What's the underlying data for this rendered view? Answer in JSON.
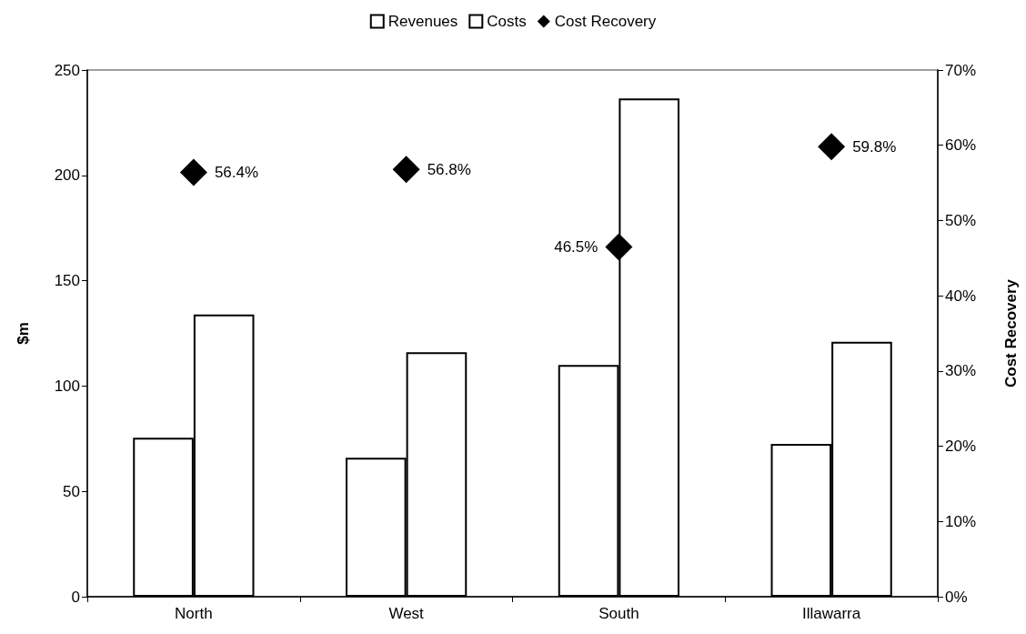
{
  "chart_data": {
    "type": "bar",
    "categories": [
      "North",
      "West",
      "South",
      "Illawarra"
    ],
    "series": [
      {
        "name": "Revenues",
        "color": "#ffffff",
        "values": [
          75.5,
          66,
          110,
          72.5
        ]
      },
      {
        "name": "Costs",
        "color": "#ffffff",
        "values": [
          134,
          116,
          236.5,
          121
        ]
      },
      {
        "name": "Cost Recovery",
        "type": "scatter",
        "axis": "y2",
        "color": "#000000",
        "values": [
          56.4,
          56.8,
          46.5,
          59.8
        ],
        "value_labels": [
          "56.4%",
          "56.8%",
          "46.5%",
          "59.8%"
        ]
      }
    ],
    "ylabel": "$m",
    "y2label": "Cost Recovery",
    "ylim": [
      0,
      250
    ],
    "yticks": [
      0,
      50,
      100,
      150,
      200,
      250
    ],
    "y2lim": [
      0,
      70
    ],
    "y2ticks": [
      {
        "value": 0,
        "label": "0%"
      },
      {
        "value": 10,
        "label": "10%"
      },
      {
        "value": 20,
        "label": "20%"
      },
      {
        "value": 30,
        "label": "30%"
      },
      {
        "value": 40,
        "label": "40%"
      },
      {
        "value": 50,
        "label": "50%"
      },
      {
        "value": 60,
        "label": "60%"
      },
      {
        "value": 70,
        "label": "70%"
      }
    ],
    "legend": "top",
    "grid": false,
    "marker": "diamond"
  }
}
